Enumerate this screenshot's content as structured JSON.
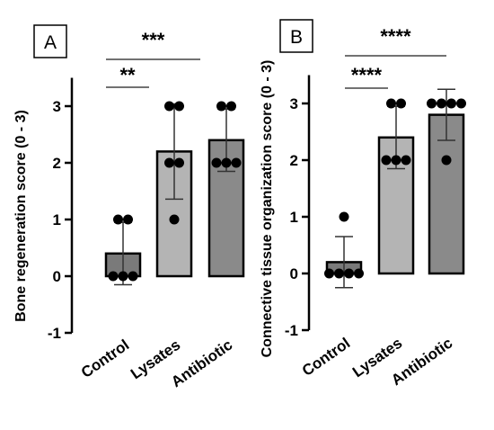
{
  "chart_data": [
    {
      "type": "bar",
      "panel_label": "A",
      "categories": [
        "Control",
        "Lysates",
        "Antibiotic"
      ],
      "values": [
        0.4,
        2.2,
        2.4
      ],
      "errors": [
        0.55,
        0.84,
        0.55
      ],
      "points": [
        [
          1,
          1,
          0,
          0,
          0
        ],
        [
          3,
          3,
          2,
          2,
          1
        ],
        [
          3,
          3,
          2,
          2,
          2
        ]
      ],
      "bar_colors": [
        "#7a7a7a",
        "#b4b4b4",
        "#8a8a8a"
      ],
      "ylabel": "Bone regeneration score  (0 - 3)",
      "xlabel": "",
      "ylim": [
        -1,
        3.5
      ],
      "yticks": [
        "-1",
        "0",
        "1",
        "2",
        "3"
      ],
      "significance": [
        {
          "from": "Control",
          "to": "Lysates",
          "label": "**"
        },
        {
          "from": "Control",
          "to": "Antibiotic",
          "label": "***"
        }
      ]
    },
    {
      "type": "bar",
      "panel_label": "B",
      "categories": [
        "Control",
        "Lysates",
        "Antibiotic"
      ],
      "values": [
        0.2,
        2.4,
        2.8
      ],
      "errors": [
        0.45,
        0.55,
        0.45
      ],
      "points": [
        [
          1,
          0,
          0,
          0,
          0
        ],
        [
          3,
          3,
          2,
          2,
          2
        ],
        [
          3,
          3,
          3,
          3,
          2
        ]
      ],
      "bar_colors": [
        "#7a7a7a",
        "#b4b4b4",
        "#8a8a8a"
      ],
      "ylabel": "Connective tissue organization score  (0 - 3)",
      "xlabel": "",
      "ylim": [
        -1,
        3.5
      ],
      "yticks": [
        "-1",
        "0",
        "1",
        "2",
        "3"
      ],
      "significance": [
        {
          "from": "Control",
          "to": "Lysates",
          "label": "****"
        },
        {
          "from": "Control",
          "to": "Antibiotic",
          "label": "****"
        }
      ]
    }
  ]
}
